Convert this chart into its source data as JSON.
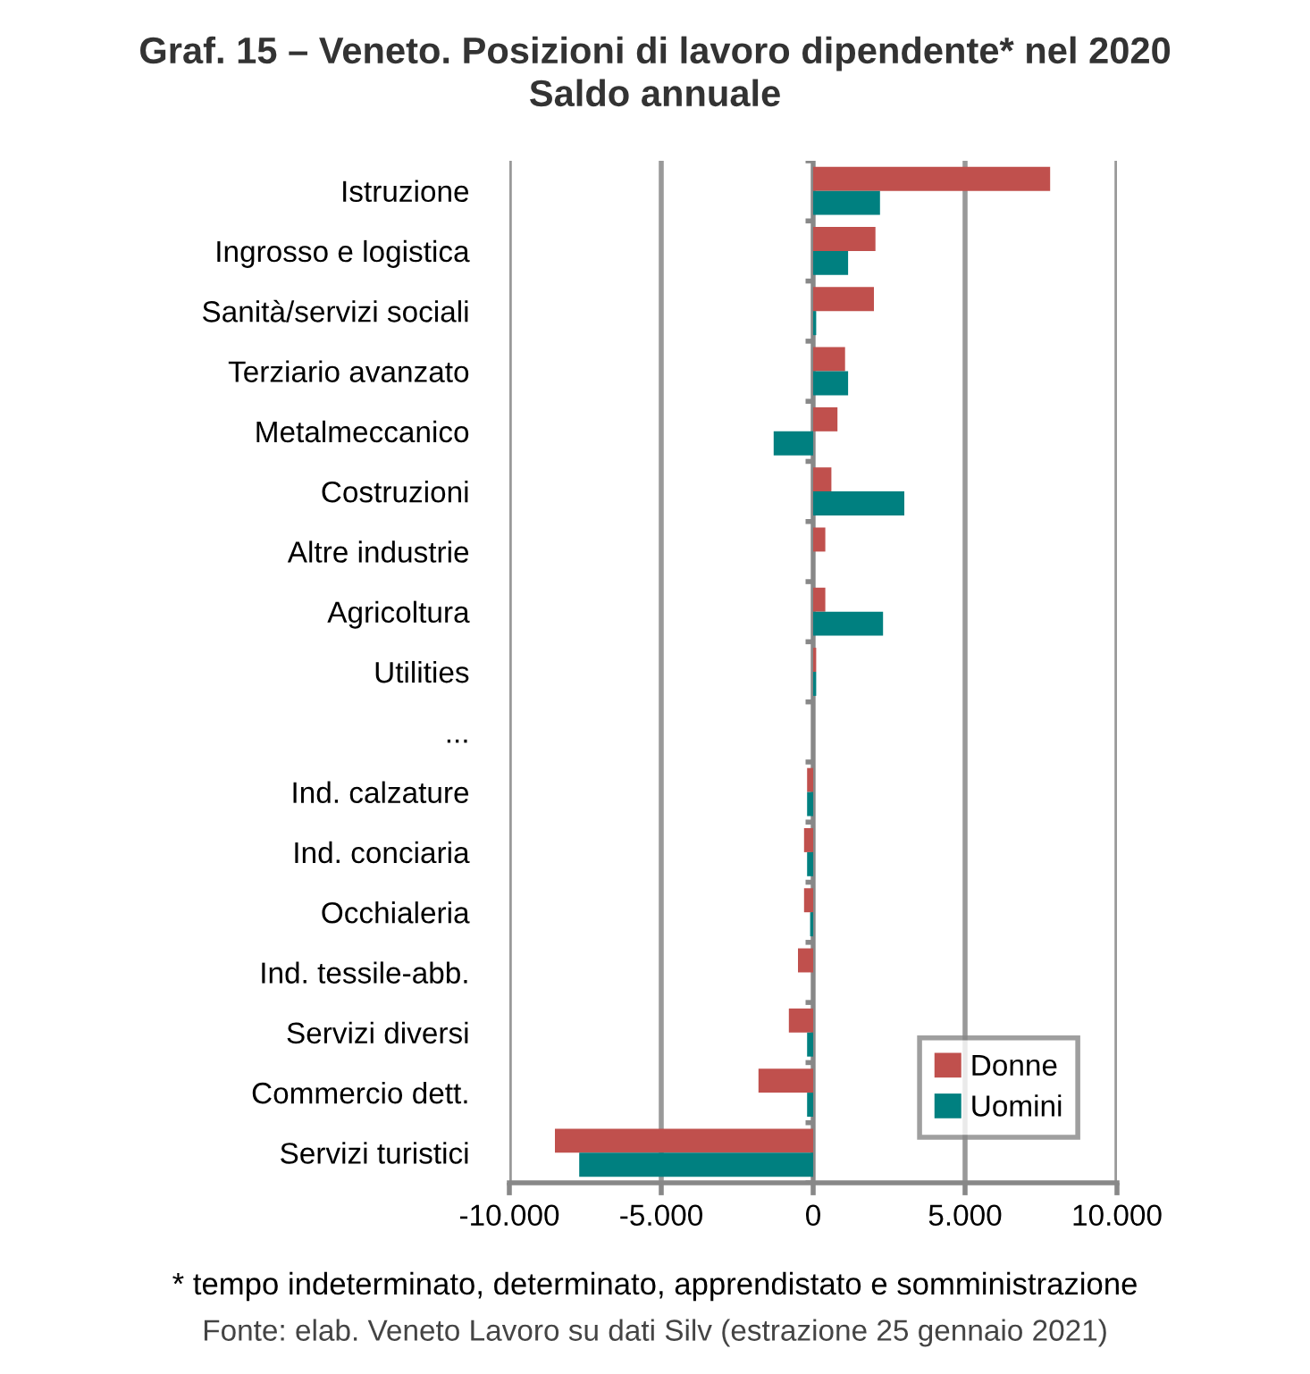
{
  "chart_data": {
    "type": "bar",
    "orientation": "horizontal",
    "title": "Graf. 15 – Veneto. Posizioni di lavoro dipendente* nel 2020\nSaldo annuale",
    "categories": [
      "Istruzione",
      "Ingrosso e logistica",
      "Sanità/servizi sociali",
      "Terziario avanzato",
      "Metalmeccanico",
      "Costruzioni",
      "Altre industrie",
      "Agricoltura",
      "Utilities",
      "...",
      "Ind. calzature",
      "Ind. conciaria",
      "Occhialeria",
      "Ind. tessile-abb.",
      "Servizi diversi",
      "Commercio dett.",
      "Servizi turistici"
    ],
    "series": [
      {
        "name": "Donne",
        "color": "#c0504d",
        "values": [
          7800,
          2050,
          2000,
          1050,
          800,
          600,
          400,
          400,
          100,
          null,
          -200,
          -300,
          -300,
          -500,
          -800,
          -1800,
          -8500
        ]
      },
      {
        "name": "Uomini",
        "color": "#008080",
        "values": [
          2200,
          1150,
          100,
          1150,
          -1300,
          3000,
          0,
          2300,
          100,
          null,
          -200,
          -200,
          -100,
          0,
          -200,
          -200,
          -7700
        ]
      }
    ],
    "xlim": [
      -10000,
      10000
    ],
    "xticks": [
      {
        "value": -10000,
        "label": "-10.000"
      },
      {
        "value": -5000,
        "label": "-5.000"
      },
      0,
      {
        "value": 5000,
        "label": "5.000"
      },
      {
        "value": 10000,
        "label": "10.000"
      }
    ],
    "grid": "x",
    "legend": "bottom right",
    "annotations": [
      "* tempo indeterminato, determinato, apprendistato e somministrazione",
      "Fonte: elab. Veneto Lavoro su dati Silv (estrazione 25 gennaio 2021)"
    ]
  }
}
